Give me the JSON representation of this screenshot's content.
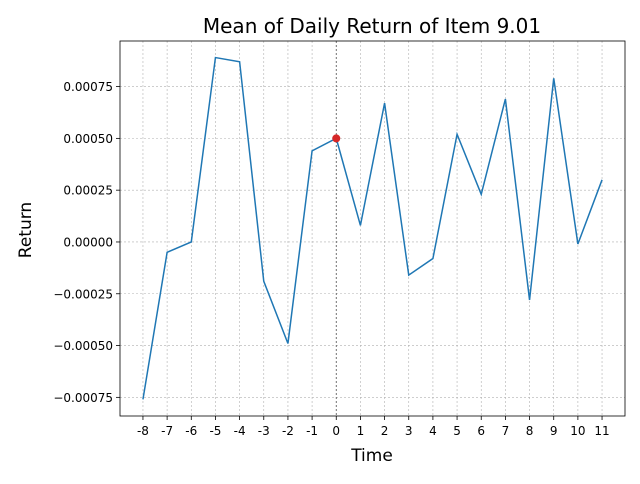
{
  "chart_data": {
    "type": "line",
    "title": "Mean of Daily Return of Item 9.01",
    "xlabel": "Time",
    "ylabel": "Return",
    "x": [
      -8,
      -7,
      -6,
      -5,
      -4,
      -3,
      -2,
      -1,
      0,
      1,
      2,
      3,
      4,
      5,
      6,
      7,
      8,
      9,
      10,
      11
    ],
    "x_tick_labels": [
      "-8",
      "-7",
      "-6",
      "-5",
      "-4",
      "-3",
      "-2",
      "-1",
      "0",
      "1",
      "2",
      "3",
      "4",
      "5",
      "6",
      "7",
      "8",
      "9",
      "10",
      "11"
    ],
    "series": [
      {
        "values": [
          -0.00076,
          -5e-05,
          0.0,
          0.00089,
          0.00087,
          -0.00019,
          -0.00049,
          0.00044,
          0.0005,
          8e-05,
          0.00067,
          -0.00016,
          -8e-05,
          0.00052,
          0.00023,
          0.00069,
          -0.00028,
          0.00079,
          -1e-05,
          0.0003
        ],
        "color": "#1f77b4"
      }
    ],
    "highlight_point": {
      "x": 0,
      "y": 0.0005,
      "color": "#d62728"
    },
    "event_line_x": 0,
    "y_ticks": [
      -0.00075,
      -0.0005,
      -0.00025,
      0.0,
      0.00025,
      0.0005,
      0.00075
    ],
    "y_tick_labels": [
      "−0.00075",
      "−0.00050",
      "−0.00025",
      "0.00000",
      "0.00025",
      "0.00050",
      "0.00075"
    ],
    "xlim": [
      -8.95,
      11.95
    ],
    "ylim": [
      -0.00084,
      0.00097
    ],
    "grid": true
  }
}
